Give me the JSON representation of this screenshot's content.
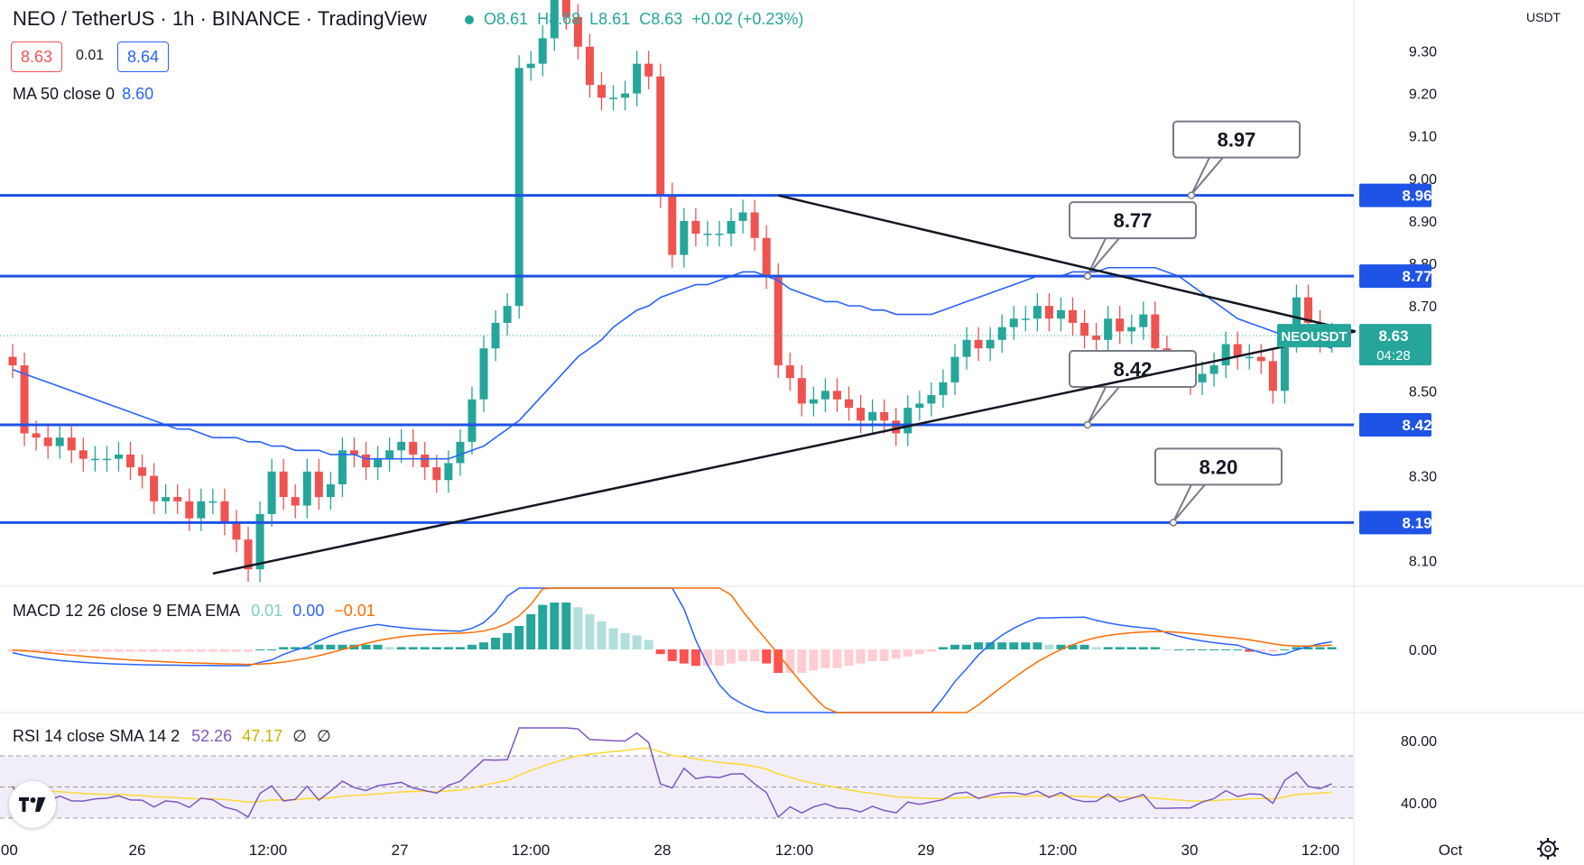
{
  "header": {
    "title": "NEO / TetherUS · 1h · BINANCE · TradingView",
    "ohlc": {
      "open_label": "O",
      "open": "8.61",
      "high_label": "H",
      "high": "8.68",
      "low_label": "L",
      "low": "8.61",
      "close_label": "C",
      "close": "8.63",
      "change": "+0.02 (+0.23%)"
    },
    "bid": "8.63",
    "spread": "0.01",
    "ask": "8.64"
  },
  "indicators": {
    "ma": {
      "label": "MA 50 close 0",
      "value": "8.60"
    },
    "macd": {
      "label": "MACD 12 26 close 9 EMA EMA",
      "hist": "0.01",
      "macd": "0.00",
      "signal": "−0.01"
    },
    "rsi": {
      "label": "RSI 14 close SMA 14 2",
      "rsi": "52.26",
      "sma": "47.17",
      "extra1": "∅",
      "extra2": "∅"
    }
  },
  "price_axis": {
    "currency": "USDT",
    "tick_values": [
      "9.30",
      "9.20",
      "9.10",
      "9.00",
      "8.90",
      "8.80",
      "8.70",
      "8.50",
      "8.30",
      "8.10"
    ]
  },
  "macd_axis": {
    "tick_values": [
      "0.00"
    ]
  },
  "rsi_axis": {
    "tick_values": [
      "80.00",
      "40.00"
    ]
  },
  "time_axis": {
    "labels": [
      ":00",
      "26",
      "12:00",
      "27",
      "12:00",
      "28",
      "12:00",
      "29",
      "12:00",
      "30",
      "12:00",
      "Oct"
    ]
  },
  "symbol_tag": {
    "name": "NEOUSDT",
    "price": "8.63",
    "countdown": "04:28"
  },
  "chart_data": {
    "type": "candlestick",
    "title": "NEO / TetherUS · 1h · BINANCE",
    "y_unit": "USDT",
    "ylim": [
      8.04,
      9.42
    ],
    "horizontal_levels": [
      {
        "value": 8.96,
        "axis_label": "8.96",
        "callout": "8.97"
      },
      {
        "value": 8.77,
        "axis_label": "8.77",
        "callout": "8.77"
      },
      {
        "value": 8.42,
        "axis_label": "8.42",
        "callout": "8.42"
      },
      {
        "value": 8.19,
        "axis_label": "8.19",
        "callout": "8.20"
      }
    ],
    "trendlines": [
      {
        "name": "upper",
        "from": {
          "x": "28 00:00",
          "y": 8.96
        },
        "to": {
          "x": "30 03:00",
          "y": 8.64
        }
      },
      {
        "name": "lower",
        "from": {
          "x": "26 07:00",
          "y": 8.07
        },
        "to": {
          "x": "30 03:00",
          "y": 8.64
        }
      }
    ],
    "current_price": 8.63,
    "candles": {
      "close": [
        8.56,
        8.4,
        8.39,
        8.37,
        8.39,
        8.36,
        8.34,
        8.34,
        8.34,
        8.35,
        8.32,
        8.3,
        8.24,
        8.25,
        8.24,
        8.2,
        8.24,
        8.24,
        8.19,
        8.15,
        8.08,
        8.21,
        8.31,
        8.25,
        8.23,
        8.31,
        8.25,
        8.28,
        8.36,
        8.35,
        8.32,
        8.34,
        8.36,
        8.38,
        8.35,
        8.32,
        8.29,
        8.33,
        8.38,
        8.48,
        8.6,
        8.66,
        8.7,
        9.26,
        9.27,
        9.33,
        9.43,
        9.38,
        9.31,
        9.22,
        9.19,
        9.19,
        9.2,
        9.27,
        9.24,
        8.96,
        8.82,
        8.9,
        8.87,
        8.87,
        8.87,
        8.9,
        8.92,
        8.86,
        8.77,
        8.56,
        8.53,
        8.47,
        8.48,
        8.5,
        8.48,
        8.46,
        8.43,
        8.45,
        8.43,
        8.4,
        8.46,
        8.47,
        8.49,
        8.52,
        8.58,
        8.62,
        8.6,
        8.62,
        8.65,
        8.67,
        8.67,
        8.7,
        8.67,
        8.69,
        8.66,
        8.63,
        8.62,
        8.67,
        8.64,
        8.65,
        8.68,
        8.6,
        8.56,
        8.54,
        8.52,
        8.54,
        8.56,
        8.61,
        8.58,
        8.58,
        8.57,
        8.5,
        8.62,
        8.72,
        8.66,
        8.62,
        8.63
      ],
      "ma50": [
        8.55,
        8.54,
        8.53,
        8.52,
        8.51,
        8.5,
        8.49,
        8.48,
        8.47,
        8.46,
        8.45,
        8.44,
        8.43,
        8.42,
        8.41,
        8.41,
        8.4,
        8.39,
        8.39,
        8.39,
        8.38,
        8.38,
        8.37,
        8.37,
        8.36,
        8.36,
        8.36,
        8.35,
        8.35,
        8.35,
        8.34,
        8.34,
        8.34,
        8.34,
        8.34,
        8.34,
        8.34,
        8.34,
        8.35,
        8.36,
        8.37,
        8.39,
        8.41,
        8.43,
        8.46,
        8.49,
        8.52,
        8.55,
        8.58,
        8.6,
        8.62,
        8.65,
        8.67,
        8.69,
        8.7,
        8.72,
        8.73,
        8.74,
        8.75,
        8.75,
        8.76,
        8.77,
        8.78,
        8.78,
        8.77,
        8.76,
        8.74,
        8.73,
        8.72,
        8.71,
        8.71,
        8.7,
        8.7,
        8.69,
        8.69,
        8.68,
        8.68,
        8.68,
        8.68,
        8.69,
        8.7,
        8.71,
        8.72,
        8.73,
        8.74,
        8.75,
        8.76,
        8.77,
        8.77,
        8.77,
        8.78,
        8.78,
        8.78,
        8.79,
        8.79,
        8.79,
        8.79,
        8.79,
        8.78,
        8.77,
        8.75,
        8.73,
        8.71,
        8.69,
        8.67,
        8.66,
        8.65,
        8.64,
        8.63,
        8.62,
        8.61,
        8.61,
        8.6
      ]
    },
    "macd": {
      "histogram_approx": [
        -0.01,
        -0.01,
        -0.01,
        -0.01,
        -0.01,
        -0.01,
        -0.01,
        -0.01,
        -0.01,
        -0.01,
        -0.01,
        -0.01,
        -0.01,
        -0.01,
        -0.01,
        -0.01,
        -0.01,
        -0.01,
        -0.01,
        -0.01,
        -0.01,
        0,
        0,
        0.01,
        0.01,
        0.01,
        0.02,
        0.02,
        0.02,
        0.02,
        0.02,
        0.02,
        0.01,
        0.01,
        0.01,
        0.01,
        0.01,
        0.01,
        0.01,
        0.02,
        0.03,
        0.05,
        0.07,
        0.1,
        0.15,
        0.19,
        0.2,
        0.2,
        0.18,
        0.15,
        0.12,
        0.09,
        0.07,
        0.06,
        0.04,
        -0.02,
        -0.05,
        -0.06,
        -0.07,
        -0.07,
        -0.07,
        -0.06,
        -0.05,
        -0.05,
        -0.06,
        -0.1,
        -0.1,
        -0.1,
        -0.09,
        -0.08,
        -0.08,
        -0.07,
        -0.06,
        -0.05,
        -0.05,
        -0.04,
        -0.03,
        -0.02,
        -0.01,
        0.01,
        0.02,
        0.02,
        0.03,
        0.03,
        0.03,
        0.03,
        0.03,
        0.03,
        0.02,
        0.02,
        0.02,
        0.02,
        0.01,
        0.01,
        0.01,
        0.01,
        0.01,
        0.01,
        0,
        0,
        0,
        0,
        0,
        0,
        0,
        -0.01,
        -0.01,
        -0.01,
        0,
        0.01,
        0.01,
        0.01,
        0.01
      ]
    },
    "rsi": {
      "upper_band": 70,
      "middle": 50,
      "lower_band": 30
    }
  }
}
